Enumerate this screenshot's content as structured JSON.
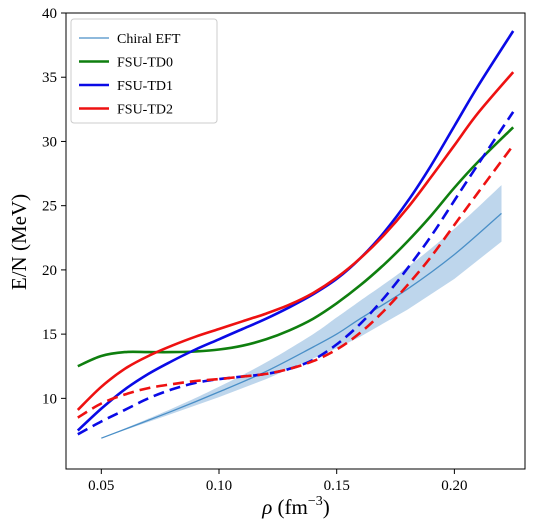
{
  "chart_data": {
    "type": "line",
    "xlabel": "ρ (fm⁻³)",
    "ylabel": "E/N (MeV)",
    "xlim": [
      0.035,
      0.23
    ],
    "ylim": [
      4.5,
      40
    ],
    "xticks": [
      0.05,
      0.1,
      0.15,
      0.2
    ],
    "xtick_labels": [
      "0.05",
      "0.10",
      "0.15",
      "0.20"
    ],
    "yticks": [
      10,
      15,
      20,
      25,
      30,
      35,
      40
    ],
    "ytick_labels": [
      "10",
      "15",
      "20",
      "25",
      "30",
      "35",
      "40"
    ],
    "grid": false,
    "legend_position": "top-left",
    "band": {
      "name": "Chiral EFT",
      "color": "#a8c8e6",
      "x": [
        0.05,
        0.08,
        0.1,
        0.12,
        0.14,
        0.15,
        0.16,
        0.18,
        0.2,
        0.22
      ],
      "lower": [
        6.9,
        8.8,
        10.1,
        11.5,
        13.1,
        13.9,
        14.8,
        16.9,
        19.3,
        22.2
      ],
      "upper": [
        6.9,
        9.2,
        10.9,
        12.8,
        15.0,
        16.3,
        17.6,
        20.2,
        23.2,
        26.6
      ]
    },
    "series": [
      {
        "name": "Chiral EFT",
        "color": "#4a8fc7",
        "width": 1.3,
        "dash": false,
        "x": [
          0.05,
          0.08,
          0.1,
          0.12,
          0.14,
          0.15,
          0.16,
          0.18,
          0.2,
          0.22
        ],
        "y": [
          6.9,
          9.0,
          10.5,
          12.1,
          14.0,
          15.0,
          16.2,
          18.5,
          21.2,
          24.4
        ]
      },
      {
        "name": "FSU-TD0",
        "color": "#0f7f0f",
        "width": 2.6,
        "dash": false,
        "x": [
          0.04,
          0.05,
          0.06,
          0.07,
          0.08,
          0.09,
          0.1,
          0.11,
          0.12,
          0.13,
          0.14,
          0.15,
          0.16,
          0.17,
          0.18,
          0.19,
          0.2,
          0.21,
          0.225
        ],
        "y": [
          12.5,
          13.3,
          13.6,
          13.6,
          13.6,
          13.65,
          13.8,
          14.1,
          14.6,
          15.3,
          16.2,
          17.4,
          18.8,
          20.4,
          22.2,
          24.2,
          26.4,
          28.4,
          31.1
        ]
      },
      {
        "name": "FSU-TD1",
        "color": "#0a0ae6",
        "width": 2.6,
        "dash": false,
        "x": [
          0.04,
          0.05,
          0.06,
          0.07,
          0.08,
          0.09,
          0.1,
          0.11,
          0.12,
          0.13,
          0.14,
          0.15,
          0.16,
          0.17,
          0.18,
          0.19,
          0.2,
          0.21,
          0.225
        ],
        "y": [
          7.5,
          9.2,
          10.7,
          11.9,
          12.9,
          13.8,
          14.6,
          15.4,
          16.2,
          17.1,
          18.1,
          19.3,
          20.9,
          22.9,
          25.3,
          28.1,
          31.2,
          34.3,
          38.6
        ]
      },
      {
        "name": "FSU-TD2",
        "color": "#ee1111",
        "width": 2.6,
        "dash": false,
        "x": [
          0.04,
          0.05,
          0.06,
          0.07,
          0.08,
          0.09,
          0.1,
          0.11,
          0.12,
          0.13,
          0.14,
          0.15,
          0.16,
          0.17,
          0.18,
          0.19,
          0.2,
          0.21,
          0.225
        ],
        "y": [
          9.1,
          10.9,
          12.3,
          13.3,
          14.1,
          14.8,
          15.4,
          16.0,
          16.6,
          17.3,
          18.2,
          19.4,
          20.9,
          22.7,
          24.8,
          27.2,
          29.7,
          32.2,
          35.4
        ]
      },
      {
        "name": "",
        "color": "#0a0ae6",
        "width": 2.6,
        "dash": true,
        "x": [
          0.04,
          0.05,
          0.06,
          0.07,
          0.08,
          0.09,
          0.1,
          0.11,
          0.12,
          0.13,
          0.14,
          0.15,
          0.16,
          0.17,
          0.18,
          0.19,
          0.2,
          0.21,
          0.225
        ],
        "y": [
          7.2,
          8.2,
          9.1,
          10.0,
          10.7,
          11.2,
          11.5,
          11.7,
          11.9,
          12.3,
          13.0,
          14.2,
          15.8,
          17.8,
          20.1,
          22.6,
          25.4,
          28.2,
          32.3
        ]
      },
      {
        "name": "",
        "color": "#ee1111",
        "width": 2.6,
        "dash": true,
        "x": [
          0.04,
          0.05,
          0.06,
          0.07,
          0.08,
          0.09,
          0.1,
          0.11,
          0.12,
          0.13,
          0.14,
          0.15,
          0.16,
          0.17,
          0.18,
          0.19,
          0.2,
          0.21,
          0.225
        ],
        "y": [
          8.5,
          9.6,
          10.3,
          10.8,
          11.1,
          11.35,
          11.5,
          11.7,
          11.9,
          12.3,
          12.9,
          13.8,
          15.1,
          16.8,
          18.8,
          21.0,
          23.5,
          26.0,
          29.7
        ]
      }
    ],
    "legend": [
      {
        "label": "Chiral EFT",
        "color": "#4a8fc7",
        "width": 1.3
      },
      {
        "label": "FSU-TD0",
        "color": "#0f7f0f",
        "width": 2.6
      },
      {
        "label": "FSU-TD1",
        "color": "#0a0ae6",
        "width": 2.6
      },
      {
        "label": "FSU-TD2",
        "color": "#ee1111",
        "width": 2.6
      }
    ]
  }
}
